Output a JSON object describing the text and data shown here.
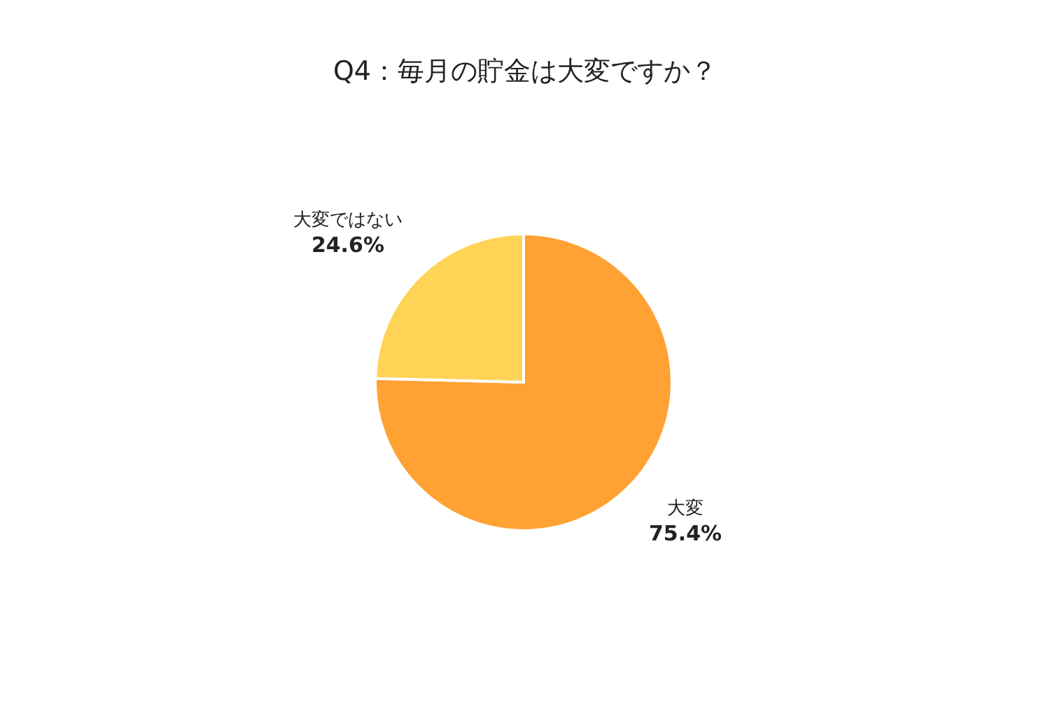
{
  "chart_data": {
    "type": "pie",
    "title": "Q4：毎月の貯金は大変ですか？",
    "categories": [
      "大変",
      "大変ではない"
    ],
    "values": [
      75.4,
      24.6
    ],
    "value_labels": [
      "75.4%",
      "24.6%"
    ],
    "colors": [
      "#ffa133",
      "#ffd456"
    ],
    "legend": false
  }
}
